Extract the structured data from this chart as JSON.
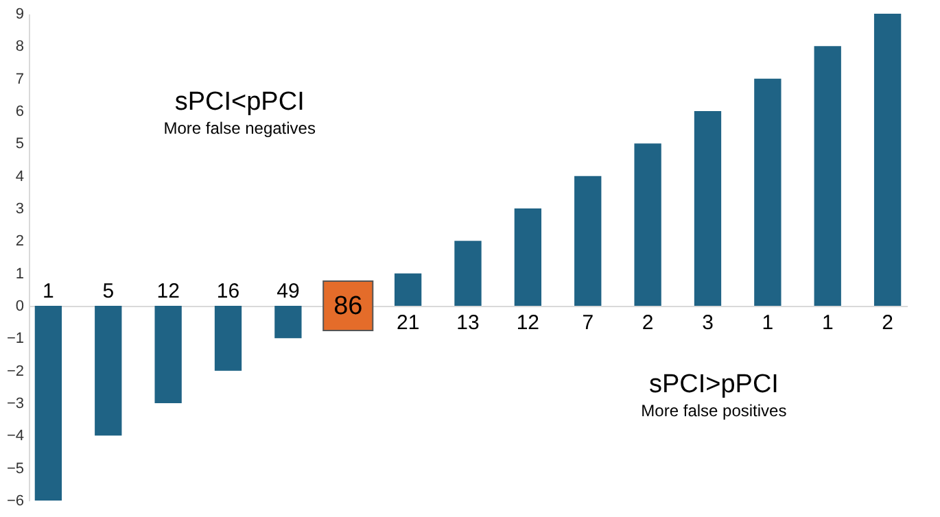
{
  "chart_data": {
    "type": "bar",
    "categories": [
      "1",
      "5",
      "12",
      "16",
      "49",
      "86",
      "21",
      "13",
      "12",
      "7",
      "2",
      "3",
      "1",
      "1",
      "2"
    ],
    "values": [
      -6,
      -4,
      -3,
      -2,
      -1,
      0,
      1,
      2,
      3,
      4,
      5,
      6,
      7,
      8,
      9
    ],
    "colors": [
      "#1f6385",
      "#1f6385",
      "#1f6385",
      "#1f6385",
      "#1f6385",
      "#e46c2a",
      "#1f6385",
      "#1f6385",
      "#1f6385",
      "#1f6385",
      "#1f6385",
      "#1f6385",
      "#1f6385",
      "#1f6385",
      "#1f6385"
    ],
    "ylim": [
      -6,
      9
    ],
    "yticks": [
      -6,
      -5,
      -4,
      -3,
      -2,
      -1,
      0,
      1,
      2,
      3,
      4,
      5,
      6,
      7,
      8,
      9
    ],
    "annotations": [
      "sPCI<pPCI",
      "More false negatives",
      "sPCI>pPCI",
      "More false positives"
    ]
  }
}
